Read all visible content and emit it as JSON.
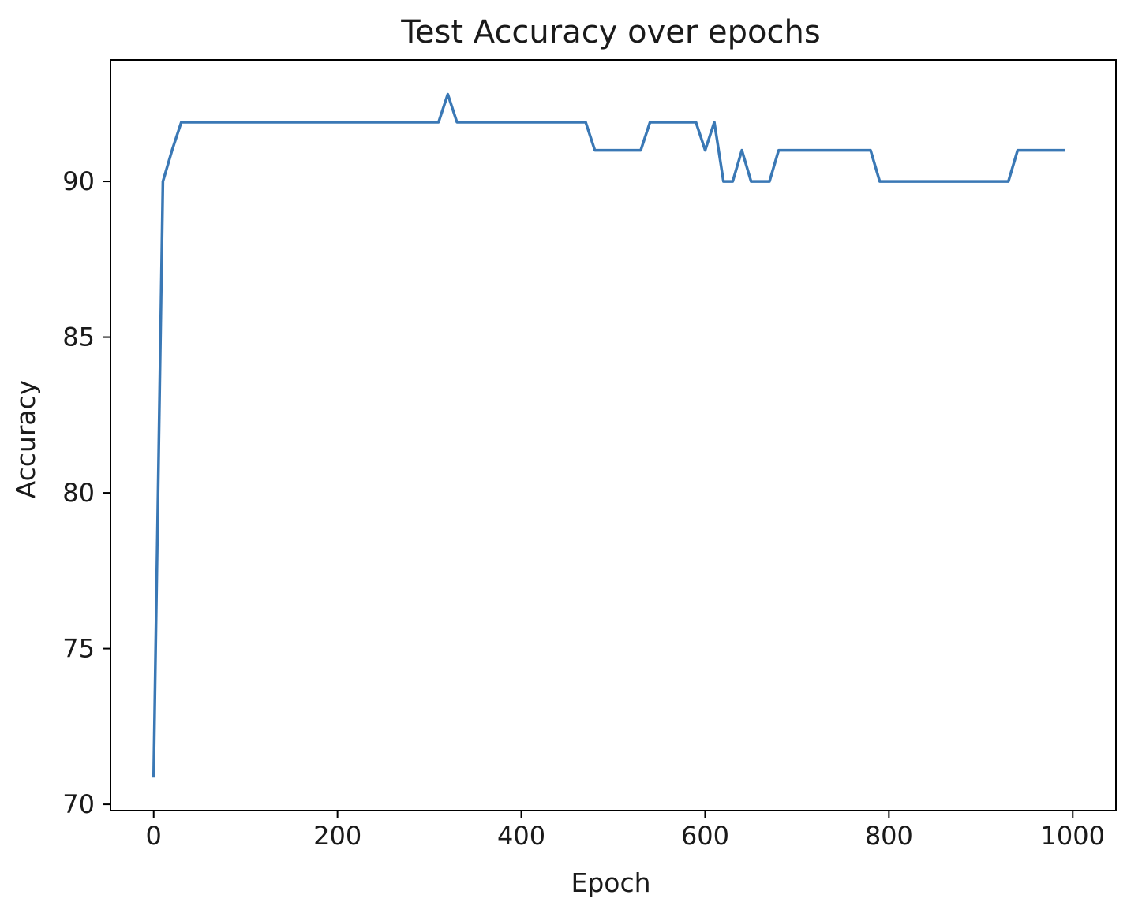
{
  "chart_data": {
    "type": "line",
    "title": "Test Accuracy over epochs",
    "xlabel": "Epoch",
    "ylabel": "Accuracy",
    "xlim": [
      -47,
      1047
    ],
    "ylim": [
      69.8,
      93.9
    ],
    "xticks": [
      0,
      200,
      400,
      600,
      800,
      1000
    ],
    "yticks": [
      70,
      75,
      80,
      85,
      90
    ],
    "grid": false,
    "series": [
      {
        "color": "#3a78b5",
        "x": [
          0,
          10,
          20,
          30,
          40,
          50,
          60,
          70,
          80,
          90,
          100,
          110,
          120,
          130,
          140,
          150,
          160,
          170,
          180,
          190,
          200,
          210,
          220,
          230,
          240,
          250,
          260,
          270,
          280,
          290,
          300,
          310,
          320,
          330,
          340,
          350,
          360,
          370,
          380,
          390,
          400,
          410,
          420,
          430,
          440,
          450,
          460,
          470,
          480,
          490,
          500,
          510,
          520,
          530,
          540,
          550,
          560,
          570,
          580,
          590,
          600,
          610,
          620,
          630,
          640,
          650,
          660,
          670,
          680,
          690,
          700,
          710,
          720,
          730,
          740,
          750,
          760,
          770,
          780,
          790,
          800,
          810,
          820,
          830,
          840,
          850,
          860,
          870,
          880,
          890,
          900,
          910,
          920,
          930,
          940,
          950,
          960,
          970,
          980,
          990
        ],
        "y": [
          70.9,
          90.0,
          91.0,
          91.9,
          91.9,
          91.9,
          91.9,
          91.9,
          91.9,
          91.9,
          91.9,
          91.9,
          91.9,
          91.9,
          91.9,
          91.9,
          91.9,
          91.9,
          91.9,
          91.9,
          91.9,
          91.9,
          91.9,
          91.9,
          91.9,
          91.9,
          91.9,
          91.9,
          91.9,
          91.9,
          91.9,
          91.9,
          92.8,
          91.9,
          91.9,
          91.9,
          91.9,
          91.9,
          91.9,
          91.9,
          91.9,
          91.9,
          91.9,
          91.9,
          91.9,
          91.9,
          91.9,
          91.9,
          91.0,
          91.0,
          91.0,
          91.0,
          91.0,
          91.0,
          91.9,
          91.9,
          91.9,
          91.9,
          91.9,
          91.9,
          91.0,
          91.9,
          90.0,
          90.0,
          91.0,
          90.0,
          90.0,
          90.0,
          91.0,
          91.0,
          91.0,
          91.0,
          91.0,
          91.0,
          91.0,
          91.0,
          91.0,
          91.0,
          91.0,
          90.0,
          90.0,
          90.0,
          90.0,
          90.0,
          90.0,
          90.0,
          90.0,
          90.0,
          90.0,
          90.0,
          90.0,
          90.0,
          90.0,
          90.0,
          91.0,
          91.0,
          91.0,
          91.0,
          91.0,
          91.0
        ]
      }
    ]
  }
}
